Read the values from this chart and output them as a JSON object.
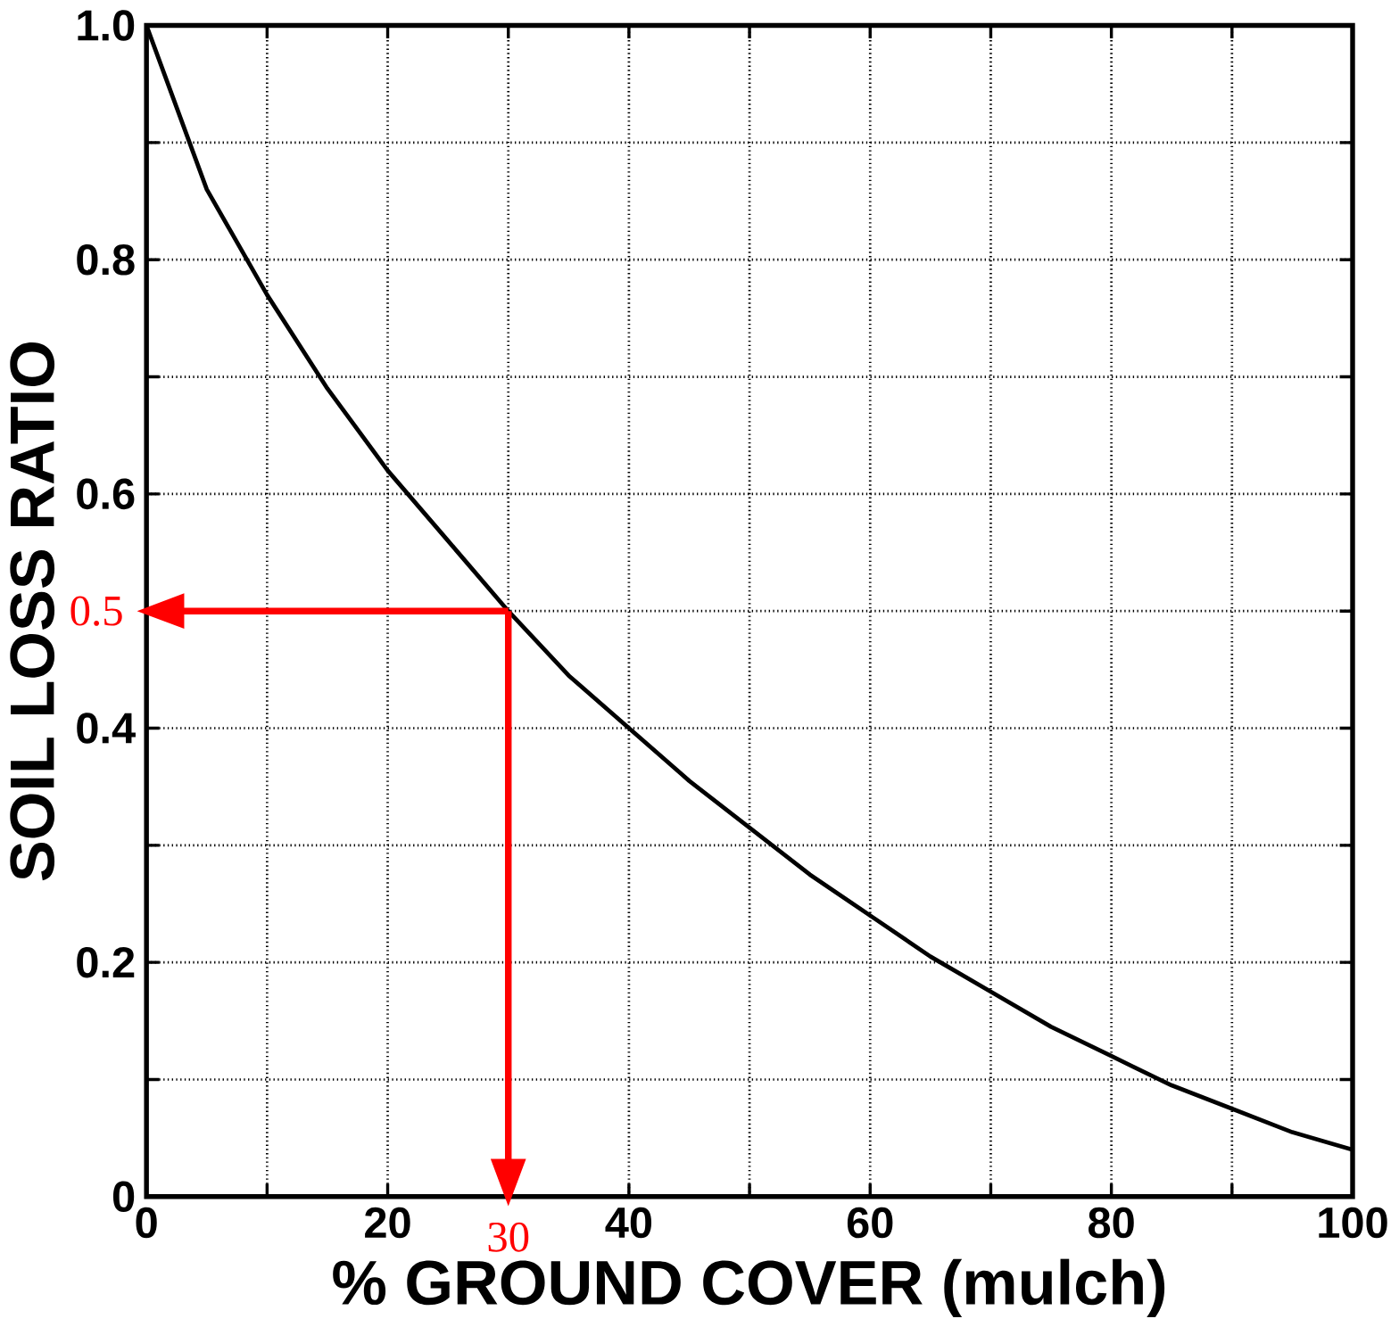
{
  "chart_data": {
    "type": "line",
    "xlabel": "% GROUND COVER (mulch)",
    "ylabel": "SOIL LOSS RATIO",
    "x": [
      0,
      5,
      10,
      15,
      20,
      25,
      30,
      35,
      40,
      45,
      50,
      55,
      60,
      65,
      70,
      75,
      80,
      85,
      90,
      95,
      100
    ],
    "series": [
      {
        "color": "#000000",
        "values": [
          1.0,
          0.86,
          0.77,
          0.69,
          0.62,
          0.56,
          0.5,
          0.445,
          0.4,
          0.355,
          0.315,
          0.275,
          0.24,
          0.205,
          0.175,
          0.145,
          0.12,
          0.095,
          0.075,
          0.055,
          0.04
        ]
      }
    ],
    "xlim": [
      0,
      100
    ],
    "ylim": [
      0,
      1.0
    ],
    "xticks": [
      0,
      {
        "value": 10,
        "label": null
      },
      20,
      {
        "value": 30,
        "label": null
      },
      40,
      {
        "value": 50,
        "label": null
      },
      60,
      {
        "value": 70,
        "label": null
      },
      80,
      {
        "value": 90,
        "label": null
      },
      100
    ],
    "yticks": [
      0,
      {
        "value": 0.1,
        "label": null
      },
      0.2,
      {
        "value": 0.3,
        "label": null
      },
      0.4,
      {
        "value": 0.5,
        "label": null
      },
      0.6,
      {
        "value": 0.7,
        "label": null
      },
      0.8,
      {
        "value": 0.9,
        "label": null
      },
      {
        "value": 1.0,
        "label": "1.0"
      }
    ],
    "grid": true,
    "marker": "none",
    "line_style": "solid",
    "ref_lines": [
      {
        "axis": "y",
        "value": 0.5,
        "label": "0.5",
        "color": "#ff0000"
      },
      {
        "axis": "x",
        "value": 30,
        "label": "30",
        "color": "#ff0000"
      }
    ]
  }
}
